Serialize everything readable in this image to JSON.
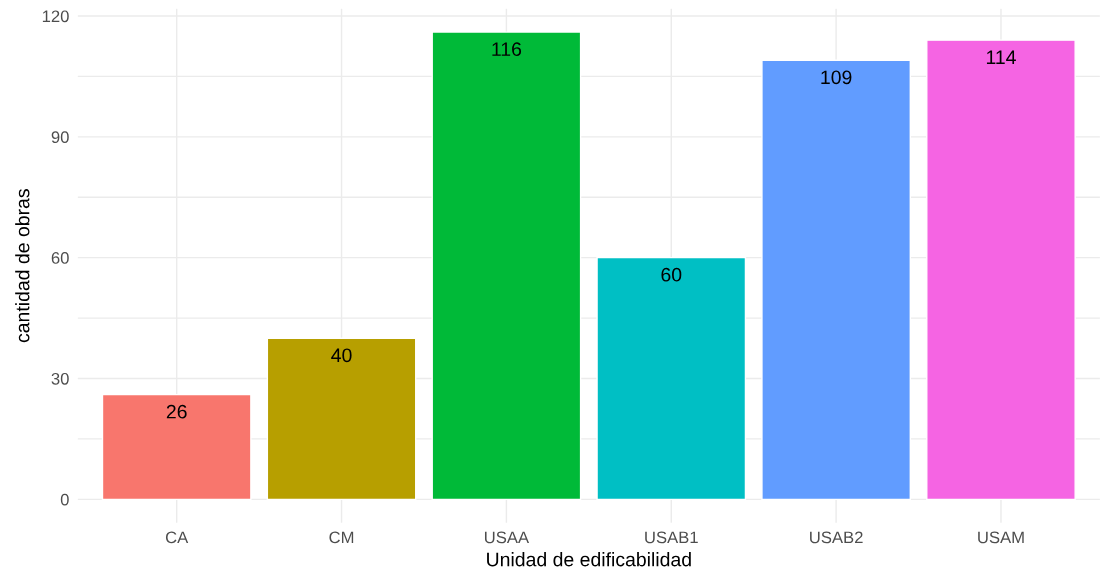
{
  "chart_data": {
    "type": "bar",
    "xlabel": "Unidad de edificabilidad",
    "ylabel": "cantidad de obras",
    "categories": [
      "CA",
      "CM",
      "USAA",
      "USAB1",
      "USAB2",
      "USAM"
    ],
    "values": [
      26,
      40,
      116,
      60,
      109,
      114
    ],
    "colors": [
      "#f8766d",
      "#b79f00",
      "#00ba38",
      "#00bfc4",
      "#619cff",
      "#f564e3"
    ],
    "ylim": [
      -5.8,
      121.8
    ],
    "yticks": [
      0,
      {
        "value": 15,
        "label": null
      },
      30,
      {
        "value": 45,
        "label": null
      },
      60,
      {
        "value": 75,
        "label": null
      },
      90,
      {
        "value": 105,
        "label": null
      },
      120
    ],
    "grid": true,
    "data_labels": true,
    "legend": false
  }
}
